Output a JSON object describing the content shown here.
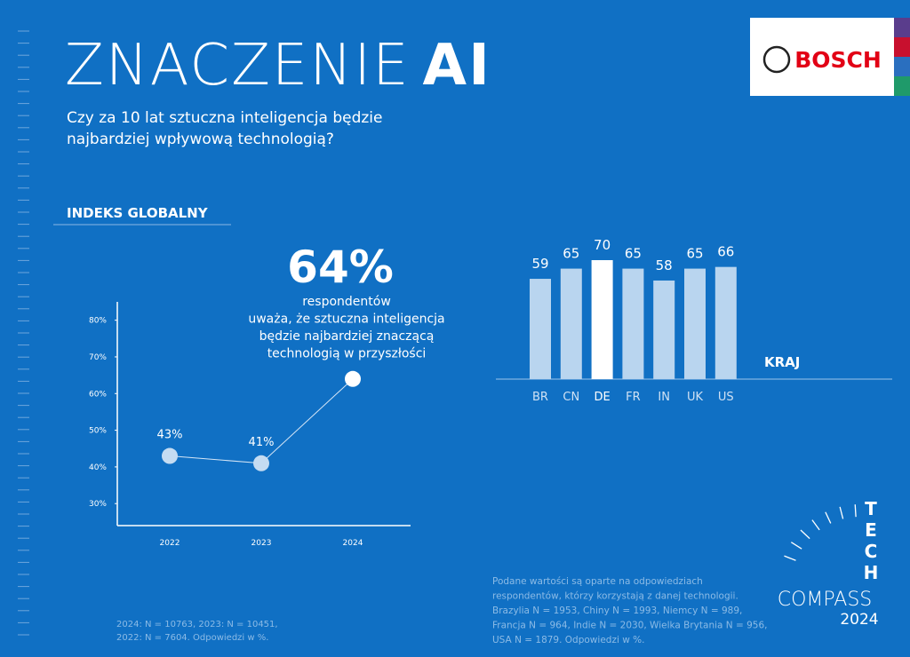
{
  "header": {
    "title_light": "ZNACZENIE",
    "title_bold": "AI",
    "subtitle": [
      "Czy za 10 lat sztuczna inteligencja będzie",
      "najbardziej wpływową technologią?"
    ],
    "section_label": "INDEKS GLOBALNY",
    "logo": "BOSCH"
  },
  "chart_data": [
    {
      "type": "line",
      "categories": [
        "2022",
        "2023",
        "2024"
      ],
      "values": [
        43,
        41,
        64
      ],
      "value_labels": [
        "43%",
        "41%",
        "64%"
      ],
      "annotation": [
        "respondentów",
        "uważa, że sztuczna inteligencja",
        "będzie najbardziej znaczącą",
        "technologią w przyszłości"
      ],
      "ylim": [
        24,
        85
      ],
      "yticks": [
        {
          "value": 30,
          "label": "30%"
        },
        {
          "value": 40,
          "label": "40%"
        },
        {
          "value": 50,
          "label": "50%"
        },
        {
          "value": 60,
          "label": "60%"
        },
        {
          "value": 70,
          "label": "70%"
        },
        {
          "value": 80,
          "label": "80%"
        }
      ],
      "color": "#c5dcf2",
      "line_color": "#d6e6f6"
    },
    {
      "type": "bar",
      "categories": [
        "BR",
        "CN",
        "DE",
        "FR",
        "IN",
        "UK",
        "US"
      ],
      "values": [
        59,
        65,
        70,
        65,
        58,
        65,
        66
      ],
      "colors": [
        "#b9d5ef",
        "#b9d5ef",
        "#ffffff",
        "#b9d5ef",
        "#b9d5ef",
        "#b9d5ef",
        "#b9d5ef"
      ],
      "x_label": "KRAJ",
      "ylim": [
        0,
        70
      ]
    }
  ],
  "footnotes": {
    "left": [
      "2024: N = 10763, 2023: N = 10451,",
      "2022: N = 7604. Odpowiedzi w %."
    ],
    "right": [
      "Podane wartości są oparte na odpowiedziach",
      "respondentów, którzy korzystają z danej technologii.",
      "Brazylia  N = 1953, Chiny N = 1993, Niemcy N = 989,",
      "Francja N = 964, Indie N = 2030, Wielka Brytania N = 956,",
      "USA N = 1879. Odpowiedzi w %."
    ]
  },
  "brand": {
    "tech": [
      "T",
      "E",
      "C",
      "H"
    ],
    "compass": "COMPASS",
    "year": "2024"
  }
}
